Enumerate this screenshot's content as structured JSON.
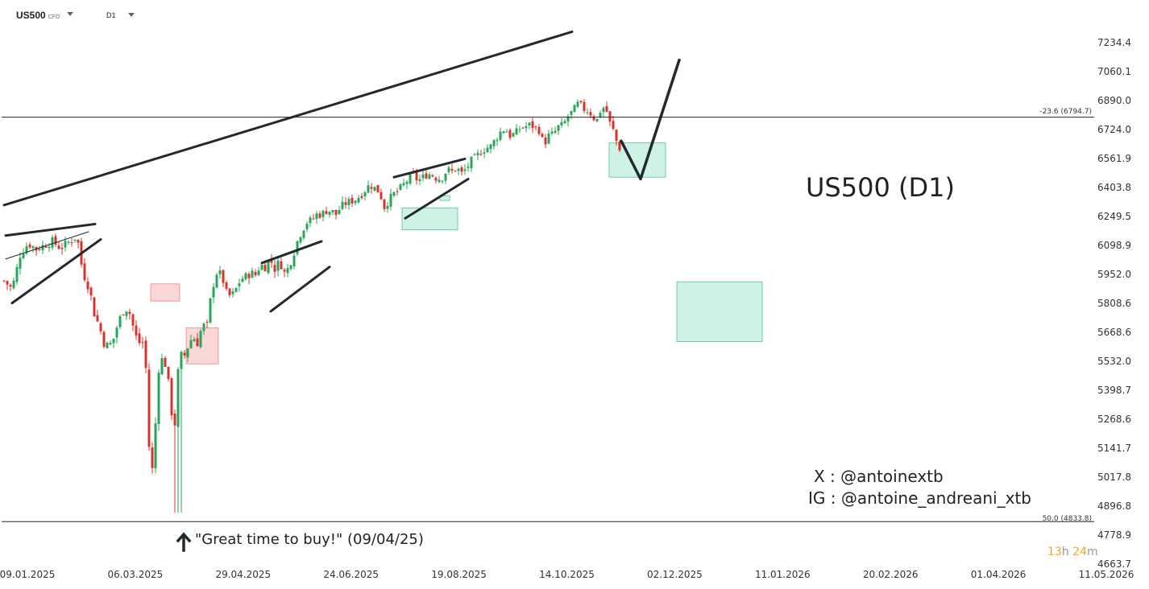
{
  "header": {
    "symbol": "US500",
    "symbol_type": "CFD",
    "timeframe": "D1"
  },
  "annotations": {
    "title": "US500 (D1)",
    "social_x": "X : @antoinextb",
    "social_ig": "IG : @antoine_andreani_xtb",
    "buy_note": "\"Great time to buy!\" (09/04/25)",
    "fib_upper": "-23.6 (6794.7)",
    "fib_lower": "50.0 (4833.8)"
  },
  "timer": {
    "hours": "13",
    "h_unit": "h",
    "minutes": "24",
    "m_unit": "m"
  },
  "colors": {
    "bull": "#26a65b",
    "bear": "#d9342b",
    "demand_zone": "#bfeedd",
    "supply_zone": "#f9c9c9",
    "pattern_line": "#222a30"
  },
  "chart_data": {
    "type": "candlestick",
    "title": "US500 (D1)",
    "ylim": [
      4663.7,
      7300
    ],
    "y_ticks": [
      7234.4,
      7060.1,
      6890.0,
      6724.0,
      6561.9,
      6403.8,
      6249.5,
      6098.9,
      5952.0,
      5808.6,
      5668.6,
      5532.0,
      5398.7,
      5268.6,
      5141.7,
      5017.8,
      4896.8,
      4778.9,
      4663.7
    ],
    "x_ticks": [
      "09.01.2025",
      "06.03.2025",
      "29.04.2025",
      "24.06.2025",
      "19.08.2025",
      "14.10.2025",
      "02.12.2025",
      "11.01.2026",
      "20.02.2026",
      "01.04.2026",
      "11.05.2026"
    ],
    "horizontal_levels": [
      {
        "label": "-23.6 (6794.7)",
        "value": 6794.7
      },
      {
        "label": "50.0 (4833.8)",
        "value": 4833.8
      }
    ],
    "candle_spacing_bars": 1,
    "close_path": [
      [
        0,
        5920
      ],
      [
        10,
        5880
      ],
      [
        20,
        6050
      ],
      [
        30,
        6110
      ],
      [
        40,
        6080
      ],
      [
        50,
        6100
      ],
      [
        60,
        6120
      ],
      [
        70,
        6085
      ],
      [
        80,
        6115
      ],
      [
        88,
        6140
      ],
      [
        92,
        6110
      ],
      [
        95,
        6020
      ],
      [
        100,
        5940
      ],
      [
        106,
        5880
      ],
      [
        112,
        5760
      ],
      [
        118,
        5700
      ],
      [
        124,
        5620
      ],
      [
        130,
        5600
      ],
      [
        136,
        5640
      ],
      [
        142,
        5720
      ],
      [
        148,
        5770
      ],
      [
        154,
        5790
      ],
      [
        160,
        5700
      ],
      [
        166,
        5620
      ],
      [
        172,
        5620
      ],
      [
        176,
        5500
      ],
      [
        180,
        5150
      ],
      [
        184,
        5050
      ],
      [
        188,
        5250
      ],
      [
        192,
        5500
      ],
      [
        196,
        5540
      ],
      [
        200,
        5520
      ],
      [
        204,
        5430
      ],
      [
        208,
        5300
      ],
      [
        212,
        5250
      ],
      [
        216,
        5480
      ],
      [
        220,
        5560
      ],
      [
        224,
        5560
      ],
      [
        228,
        5600
      ],
      [
        234,
        5650
      ],
      [
        240,
        5620
      ],
      [
        246,
        5700
      ],
      [
        252,
        5700
      ],
      [
        258,
        5880
      ],
      [
        264,
        5960
      ],
      [
        270,
        5950
      ],
      [
        276,
        5860
      ],
      [
        282,
        5840
      ],
      [
        288,
        5880
      ],
      [
        294,
        5930
      ],
      [
        300,
        5940
      ],
      [
        306,
        5960
      ],
      [
        312,
        5950
      ],
      [
        318,
        6000
      ],
      [
        324,
        5990
      ],
      [
        330,
        6030
      ],
      [
        336,
        5980
      ],
      [
        342,
        6020
      ],
      [
        348,
        5960
      ],
      [
        352,
        5980
      ],
      [
        358,
        6040
      ],
      [
        364,
        6120
      ],
      [
        370,
        6180
      ],
      [
        376,
        6220
      ],
      [
        382,
        6230
      ],
      [
        388,
        6260
      ],
      [
        394,
        6260
      ],
      [
        400,
        6280
      ],
      [
        406,
        6280
      ],
      [
        412,
        6260
      ],
      [
        418,
        6300
      ],
      [
        424,
        6320
      ],
      [
        430,
        6330
      ],
      [
        436,
        6340
      ],
      [
        442,
        6360
      ],
      [
        448,
        6390
      ],
      [
        454,
        6420
      ],
      [
        460,
        6400
      ],
      [
        466,
        6380
      ],
      [
        472,
        6300
      ],
      [
        478,
        6340
      ],
      [
        484,
        6370
      ],
      [
        490,
        6390
      ],
      [
        496,
        6420
      ],
      [
        502,
        6450
      ],
      [
        508,
        6470
      ],
      [
        514,
        6440
      ],
      [
        520,
        6460
      ],
      [
        526,
        6480
      ],
      [
        532,
        6470
      ],
      [
        538,
        6450
      ],
      [
        544,
        6460
      ],
      [
        550,
        6500
      ],
      [
        556,
        6490
      ],
      [
        562,
        6510
      ],
      [
        568,
        6480
      ],
      [
        574,
        6510
      ],
      [
        580,
        6550
      ],
      [
        586,
        6570
      ],
      [
        592,
        6600
      ],
      [
        598,
        6620
      ],
      [
        604,
        6630
      ],
      [
        610,
        6670
      ],
      [
        616,
        6710
      ],
      [
        622,
        6730
      ],
      [
        628,
        6690
      ],
      [
        634,
        6700
      ],
      [
        640,
        6730
      ],
      [
        646,
        6740
      ],
      [
        652,
        6750
      ],
      [
        658,
        6740
      ],
      [
        664,
        6720
      ],
      [
        670,
        6640
      ],
      [
        676,
        6690
      ],
      [
        682,
        6700
      ],
      [
        688,
        6740
      ],
      [
        694,
        6750
      ],
      [
        700,
        6800
      ],
      [
        706,
        6830
      ],
      [
        712,
        6870
      ],
      [
        716,
        6860
      ],
      [
        720,
        6840
      ],
      [
        726,
        6830
      ],
      [
        732,
        6790
      ],
      [
        736,
        6780
      ],
      [
        740,
        6830
      ],
      [
        746,
        6860
      ],
      [
        752,
        6760
      ],
      [
        756,
        6720
      ],
      [
        760,
        6660
      ],
      [
        764,
        6620
      ]
    ],
    "patterns": {
      "long_trendline": [
        [
          0,
          6310
        ],
        [
          705,
          7300
        ]
      ],
      "wedge_1_upper": [
        [
          2,
          6150
        ],
        [
          113,
          6210
        ]
      ],
      "wedge_1_lower": [
        [
          10,
          5810
        ],
        [
          120,
          6130
        ]
      ],
      "wedge_1_mid": [
        [
          2,
          6030
        ],
        [
          105,
          6170
        ]
      ],
      "wedge_2_upper": [
        [
          320,
          6010
        ],
        [
          394,
          6120
        ]
      ],
      "wedge_2_lower": [
        [
          331,
          5770
        ],
        [
          404,
          5990
        ]
      ],
      "wedge_3_upper": [
        [
          484,
          6460
        ],
        [
          572,
          6560
        ]
      ],
      "wedge_3_lower": [
        [
          498,
          6240
        ],
        [
          576,
          6450
        ]
      ],
      "projection": [
        [
          766,
          6660
        ],
        [
          790,
          6450
        ],
        [
          838,
          7130
        ]
      ]
    },
    "zones": [
      {
        "kind": "demand",
        "x": [
          494,
          563
        ],
        "y": [
          6180,
          6295
        ]
      },
      {
        "kind": "demand",
        "x": [
          541,
          553
        ],
        "y": [
          6335,
          6360
        ]
      },
      {
        "kind": "demand",
        "x": [
          751,
          821
        ],
        "y": [
          6460,
          6650
        ]
      },
      {
        "kind": "demand",
        "x": [
          835,
          941
        ],
        "y": [
          5625,
          5915
        ]
      },
      {
        "kind": "supply",
        "x": [
          182,
          218
        ],
        "y": [
          5820,
          5905
        ]
      },
      {
        "kind": "supply",
        "x": [
          226,
          266
        ],
        "y": [
          5520,
          5690
        ]
      }
    ]
  }
}
